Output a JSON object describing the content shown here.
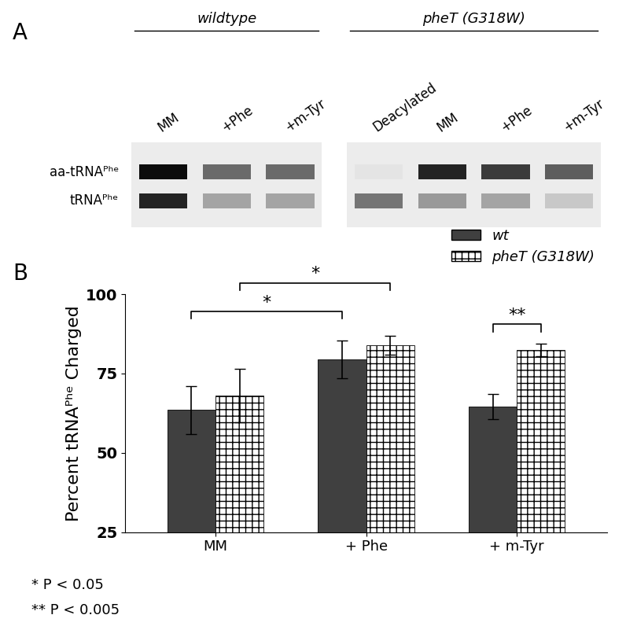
{
  "chart_data": {
    "type": "bar",
    "panel_label": "B",
    "y_label": "Percent tRNAᴾʰᵉ Charged",
    "categories": [
      "MM",
      "+ Phe",
      "+ m-Tyr"
    ],
    "series": [
      {
        "name": "wt",
        "color": "#404040",
        "values": [
          63.5,
          79.5,
          64.5
        ],
        "errors": [
          7.5,
          6,
          4
        ]
      },
      {
        "name": "pheT (G318W)",
        "color": "#ffffff",
        "values": [
          68,
          84,
          82.5
        ],
        "errors": [
          8.5,
          3,
          2
        ]
      }
    ],
    "ylim": [
      25,
      100
    ],
    "yticks": [
      25,
      50,
      75,
      100
    ],
    "grid": false,
    "legend": "upper right",
    "annotations": [
      {
        "text": "*",
        "categories": [
          0,
          1
        ],
        "series": [
          1,
          1
        ],
        "y": 103.5
      },
      {
        "text": "*",
        "categories": [
          0,
          1
        ],
        "series": [
          0,
          0
        ],
        "y": 94.5
      },
      {
        "text": "**",
        "categories": [
          2,
          2
        ],
        "series": [
          0,
          1
        ],
        "y": 90.5
      }
    ],
    "footnotes": [
      "* P < 0.05",
      "** P < 0.005"
    ]
  },
  "gel": {
    "panel_label": "A",
    "bands": [
      "aa-tRNAᴾʰᵉ",
      "tRNAᴾʰᵉ"
    ],
    "groups": [
      {
        "label": "wildtype",
        "lanes": [
          {
            "label": "MM",
            "intensity": [
              0.95,
              0.85
            ]
          },
          {
            "label": "+Phe",
            "intensity": [
              0.55,
              0.3
            ]
          },
          {
            "label": "+m-Tyr",
            "intensity": [
              0.55,
              0.3
            ]
          }
        ]
      },
      {
        "label": "pheT (G318W)",
        "lanes": [
          {
            "label": "Deacylated",
            "intensity": [
              0.03,
              0.5
            ]
          },
          {
            "label": "MM",
            "intensity": [
              0.85,
              0.35
            ]
          },
          {
            "label": "+Phe",
            "intensity": [
              0.75,
              0.3
            ]
          },
          {
            "label": "+m-Tyr",
            "intensity": [
              0.6,
              0.15
            ]
          }
        ]
      }
    ]
  }
}
